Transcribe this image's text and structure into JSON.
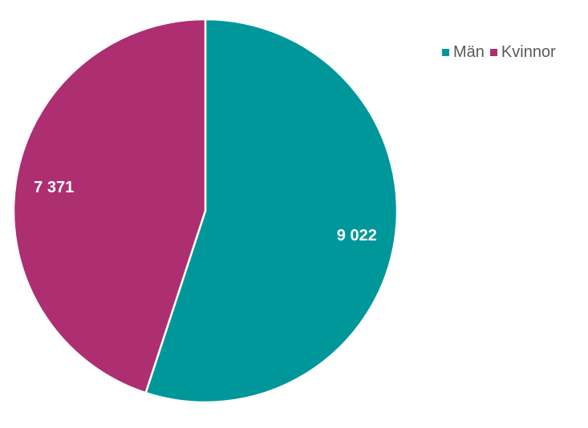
{
  "chart_data": {
    "type": "pie",
    "categories": [
      "Män",
      "Kvinnor"
    ],
    "values": [
      9022,
      7371
    ],
    "data_labels": [
      "9 022",
      "7 371"
    ],
    "colors": [
      "#00979B",
      "#AE2E72"
    ],
    "legend_position": "top-right",
    "start_angle_deg": 0,
    "direction": "clockwise"
  }
}
